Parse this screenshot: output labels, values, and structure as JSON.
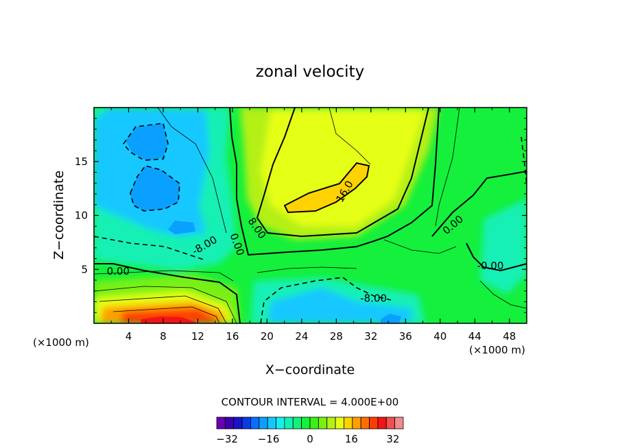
{
  "chart_data": {
    "type": "contour",
    "title": "zonal velocity",
    "xlabel": "X−coordinate",
    "ylabel": "Z−coordinate",
    "x_unit_left": "(×1000 m)",
    "x_unit_right": "(×1000 m)",
    "xlim": [
      0,
      50
    ],
    "ylim": [
      0,
      20
    ],
    "x_ticks": [
      4,
      8,
      12,
      16,
      20,
      24,
      28,
      32,
      36,
      40,
      44,
      48
    ],
    "y_ticks": [
      5,
      10,
      15
    ],
    "contour_interval_text": "CONTOUR INTERVAL = 4.000E+00",
    "contour_labels": [
      {
        "text": "16.0",
        "x": 29.0,
        "y": 12.2,
        "angle": -60
      },
      {
        "text": "8.00",
        "x": 18.8,
        "y": 8.8,
        "angle": 55
      },
      {
        "text": "0.00",
        "x": 16.5,
        "y": 7.3,
        "angle": 70
      },
      {
        "text": "-8.00",
        "x": 12.8,
        "y": 7.2,
        "angle": -30
      },
      {
        "text": "0.00",
        "x": 2.8,
        "y": 4.8,
        "angle": 0
      },
      {
        "text": "-8.00",
        "x": 32.3,
        "y": 2.3,
        "angle": 0
      },
      {
        "text": "0.00",
        "x": 41.5,
        "y": 9.1,
        "angle": -40
      },
      {
        "text": "-0.00",
        "x": 45.8,
        "y": 5.3,
        "angle": 0
      }
    ],
    "colorbar": {
      "levels": [
        -36,
        36
      ],
      "colors": [
        "#6a00b0",
        "#3c00b0",
        "#1a14c8",
        "#0a3ce6",
        "#0a6eff",
        "#0aa0ff",
        "#14c8ff",
        "#14f0f0",
        "#14f0b4",
        "#14f078",
        "#14f03c",
        "#3cf014",
        "#78f014",
        "#b4f014",
        "#e6ff14",
        "#ffd200",
        "#ffa000",
        "#ff6e00",
        "#ff3c00",
        "#f01414",
        "#f05050",
        "#f08c8c"
      ],
      "tick_values": [
        -32,
        -16,
        0,
        16,
        32
      ],
      "tick_labels": [
        "−32",
        "−16",
        "0",
        "16",
        "32"
      ]
    }
  }
}
